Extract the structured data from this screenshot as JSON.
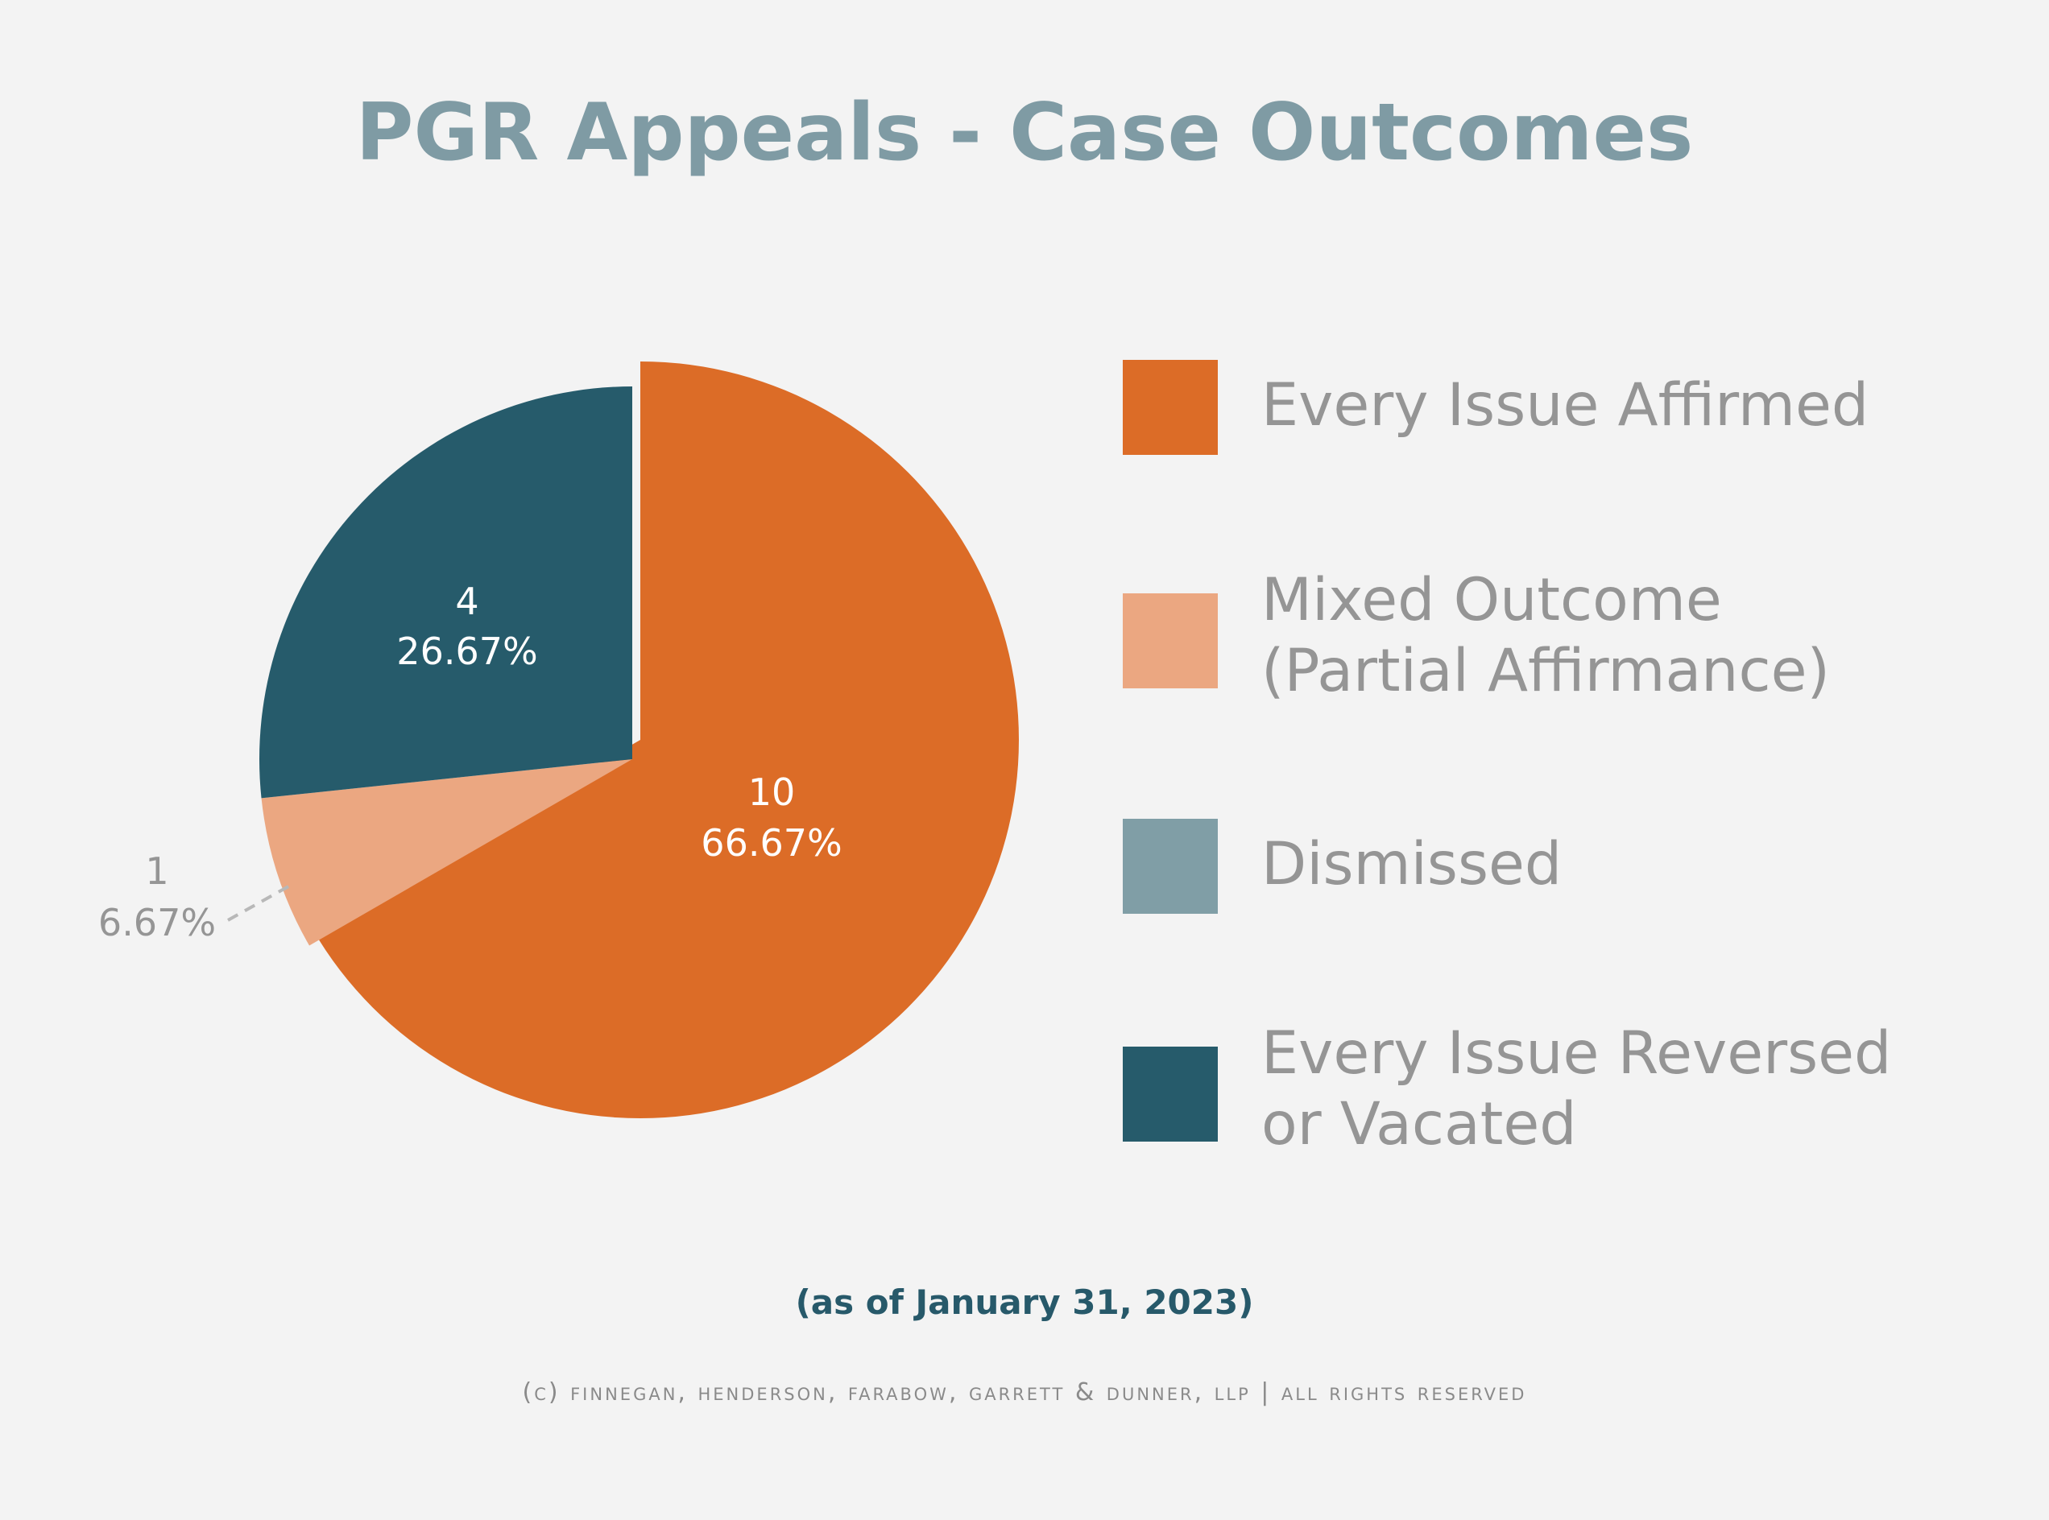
{
  "title": "PGR Appeals - Case Outcomes",
  "chart_data": {
    "type": "pie",
    "title": "PGR Appeals - Case Outcomes",
    "slices": [
      {
        "label": "Every Issue Affirmed",
        "value": 10,
        "percent": "66.67%",
        "color": "#dc6c27",
        "exploded": true
      },
      {
        "label": "Mixed Outcome (Partial Affirmance)",
        "value": 1,
        "percent": "6.67%",
        "color": "#eba781"
      },
      {
        "label": "Dismissed",
        "value": 0,
        "percent": "0%",
        "color": "#809ea6"
      },
      {
        "label": "Every Issue Reversed or Vacated",
        "value": 4,
        "percent": "26.67%",
        "color": "#265b6b"
      }
    ],
    "data_labels": [
      {
        "count": "10",
        "percent": "66.67%"
      },
      {
        "count": "1",
        "percent": "6.67%"
      },
      {
        "count": "4",
        "percent": "26.67%"
      }
    ],
    "legend_placement": "right"
  },
  "legend": [
    {
      "lines": [
        "Every Issue Affirmed"
      ],
      "color": "#dc6c27"
    },
    {
      "lines": [
        "Mixed Outcome",
        "(Partial Affirmance)"
      ],
      "color": "#eba781"
    },
    {
      "lines": [
        "Dismissed"
      ],
      "color": "#809ea6"
    },
    {
      "lines": [
        "Every Issue Reversed",
        "or Vacated"
      ],
      "color": "#265b6b"
    }
  ],
  "as_of": "(as of January 31, 2023)",
  "copyright": "(c) finnegan, henderson, farabow, garrett & dunner, llp | all rights reserved"
}
